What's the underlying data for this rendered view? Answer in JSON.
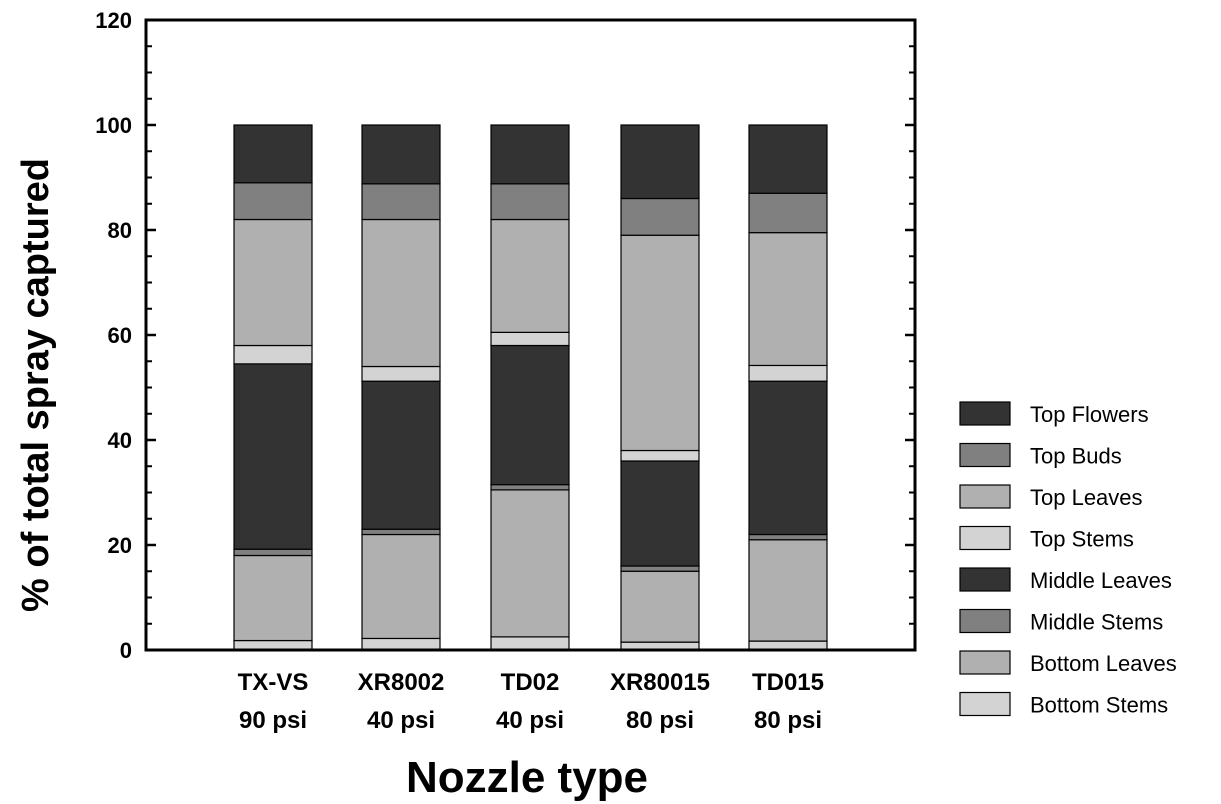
{
  "chart_data": {
    "type": "bar",
    "stacked": true,
    "title": "",
    "xlabel": "Nozzle type",
    "ylabel": "% of total spray captured",
    "ylim": [
      0,
      120
    ],
    "yticks": [
      0,
      20,
      40,
      60,
      80,
      100,
      120
    ],
    "categories": [
      {
        "line1": "TX-VS",
        "line2": "90 psi"
      },
      {
        "line1": "XR8002",
        "line2": "40 psi"
      },
      {
        "line1": "TD02",
        "line2": "40 psi"
      },
      {
        "line1": "XR80015",
        "line2": "80 psi"
      },
      {
        "line1": "TD015",
        "line2": "80 psi"
      }
    ],
    "grid": false,
    "legend_position": "right",
    "series": [
      {
        "name": "Bottom Stems",
        "color": "#d3d3d3",
        "values": [
          1.8,
          2.2,
          2.5,
          1.5,
          1.7
        ]
      },
      {
        "name": "Bottom Leaves",
        "color": "#b0b0b0",
        "values": [
          16.2,
          19.8,
          28.0,
          13.5,
          19.3
        ]
      },
      {
        "name": "Middle Stems",
        "color": "#808080",
        "values": [
          1.2,
          1.0,
          1.0,
          1.0,
          1.0
        ]
      },
      {
        "name": "Middle Leaves",
        "color": "#333333",
        "values": [
          35.3,
          28.2,
          26.5,
          20.0,
          29.2
        ]
      },
      {
        "name": "Top Stems",
        "color": "#d3d3d3",
        "values": [
          3.5,
          2.8,
          2.5,
          2.0,
          3.0
        ]
      },
      {
        "name": "Top Leaves",
        "color": "#b0b0b0",
        "values": [
          24.0,
          28.0,
          21.5,
          41.0,
          25.3
        ]
      },
      {
        "name": "Top Buds",
        "color": "#808080",
        "values": [
          7.0,
          6.8,
          6.8,
          7.0,
          7.5
        ]
      },
      {
        "name": "Top Flowers",
        "color": "#333333",
        "values": [
          11.0,
          11.2,
          11.2,
          14.0,
          13.0
        ]
      }
    ]
  }
}
